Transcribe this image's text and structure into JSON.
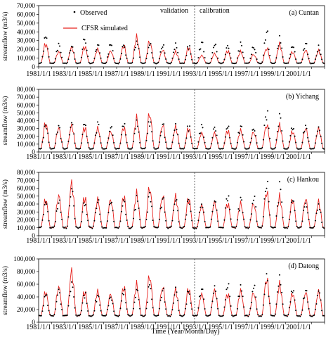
{
  "figure": {
    "xlabel": "Time (Year/Month/Day)",
    "x_ticks": [
      "1981/1/1",
      "1983/1/1",
      "1985/1/1",
      "1987/1/1",
      "1989/1/1",
      "1991/1/1",
      "1993/1/1",
      "1995/1/1",
      "1997/1/1",
      "1999/1/1",
      "2001/1/1"
    ],
    "divider_x": "1993/1/1",
    "period_labels": {
      "validation": "validation",
      "calibration": "calibration"
    },
    "legend": {
      "observed": "Observed",
      "simulated": "CFSR simulated"
    },
    "colors": {
      "simulated": "#e8231f",
      "observed": "#000000",
      "divider": "#444444"
    }
  },
  "chart_data": [
    {
      "type": "line",
      "panel_label": "(a) Cuntan",
      "ylabel": "streamflow (m3/s)",
      "ylim": [
        0,
        70000
      ],
      "y_ticks": [
        "0",
        "10,000",
        "20,000",
        "30,000",
        "40,000",
        "50,000",
        "60,000",
        "70,000"
      ],
      "x_range": [
        1981,
        2003
      ],
      "series": [
        {
          "name": "CFSR simulated",
          "kind": "line",
          "color": "#e8231f",
          "base": 4000,
          "peaks": [
            26000,
            17000,
            22000,
            23000,
            20000,
            18000,
            24000,
            33000,
            29000,
            19000,
            17000,
            22000,
            13000,
            15000,
            18000,
            17000,
            14000,
            21000,
            25000,
            17000,
            19000,
            18000
          ]
        },
        {
          "name": "Observed",
          "kind": "points",
          "color": "#000000",
          "base": 4000,
          "peaks": [
            34000,
            27000,
            25000,
            33000,
            28000,
            28000,
            26000,
            31000,
            27000,
            26000,
            26000,
            25000,
            31000,
            28000,
            25000,
            27000,
            24000,
            41000,
            32000,
            26000,
            27000,
            23000
          ]
        }
      ]
    },
    {
      "type": "line",
      "panel_label": "(b) Yichang",
      "ylabel": "streamflow (m3/s)",
      "ylim": [
        0,
        80000
      ],
      "y_ticks": [
        "0",
        "10,000",
        "20,000",
        "30,000",
        "40,000",
        "50,000",
        "60,000",
        "70,000",
        "80,000"
      ],
      "x_range": [
        1981,
        2003
      ],
      "series": [
        {
          "name": "CFSR simulated",
          "kind": "line",
          "color": "#e8231f",
          "base": 4000,
          "peaks": [
            36000,
            30000,
            33000,
            31000,
            30000,
            26000,
            31000,
            42000,
            48000,
            34000,
            31000,
            30000,
            24000,
            24000,
            27000,
            27000,
            25000,
            34000,
            33000,
            26000,
            30000,
            29000
          ]
        },
        {
          "name": "Observed",
          "kind": "points",
          "color": "#000000",
          "base": 4000,
          "peaks": [
            37000,
            34000,
            38000,
            39000,
            36000,
            33000,
            37000,
            40000,
            42000,
            36000,
            34000,
            34000,
            36000,
            33000,
            34000,
            35000,
            34000,
            53000,
            44000,
            35000,
            36000,
            33000
          ]
        }
      ]
    },
    {
      "type": "line",
      "panel_label": "(c) Hankou",
      "ylabel": "streamflow (m3/s)",
      "ylim": [
        0,
        80000
      ],
      "y_ticks": [
        "0",
        "10,000",
        "20,000",
        "30,000",
        "40,000",
        "50,000",
        "60,000",
        "70,000",
        "80,000"
      ],
      "x_range": [
        1981,
        2003
      ],
      "series": [
        {
          "name": "CFSR simulated",
          "kind": "line",
          "color": "#e8231f",
          "base": 10000,
          "peaks": [
            45000,
            50000,
            65000,
            48000,
            45000,
            45000,
            49000,
            52000,
            60000,
            50000,
            48000,
            46000,
            38000,
            42000,
            40000,
            40000,
            40000,
            55000,
            48000,
            45000,
            46000,
            42000
          ]
        },
        {
          "name": "Observed",
          "kind": "points",
          "color": "#000000",
          "base": 10000,
          "peaks": [
            44000,
            50000,
            58000,
            46000,
            46000,
            45000,
            48000,
            50000,
            55000,
            50000,
            48000,
            46000,
            45000,
            48000,
            52000,
            48000,
            50000,
            71000,
            62000,
            48000,
            45000,
            44000
          ]
        }
      ]
    },
    {
      "type": "line",
      "panel_label": "(d) Datong",
      "ylabel": "streamflow (m3/s)",
      "ylim": [
        0,
        100000
      ],
      "y_ticks": [
        "0",
        "20,000",
        "40,000",
        "60,000",
        "80,000",
        "100,000"
      ],
      "x_range": [
        1981,
        2003
      ],
      "series": [
        {
          "name": "CFSR simulated",
          "kind": "line",
          "color": "#e8231f",
          "base": 10000,
          "peaks": [
            47000,
            55000,
            79000,
            48000,
            48000,
            44000,
            55000,
            58000,
            72000,
            55000,
            50000,
            52000,
            44000,
            50000,
            44000,
            48000,
            46000,
            68000,
            58000,
            45000,
            47000,
            47000
          ]
        },
        {
          "name": "Observed",
          "kind": "points",
          "color": "#000000",
          "base": 10000,
          "peaks": [
            44000,
            53000,
            66000,
            48000,
            47000,
            45000,
            52000,
            53000,
            60000,
            55000,
            52000,
            50000,
            58000,
            60000,
            64000,
            62000,
            60000,
            77000,
            76000,
            55000,
            51000,
            50000
          ]
        }
      ]
    }
  ]
}
